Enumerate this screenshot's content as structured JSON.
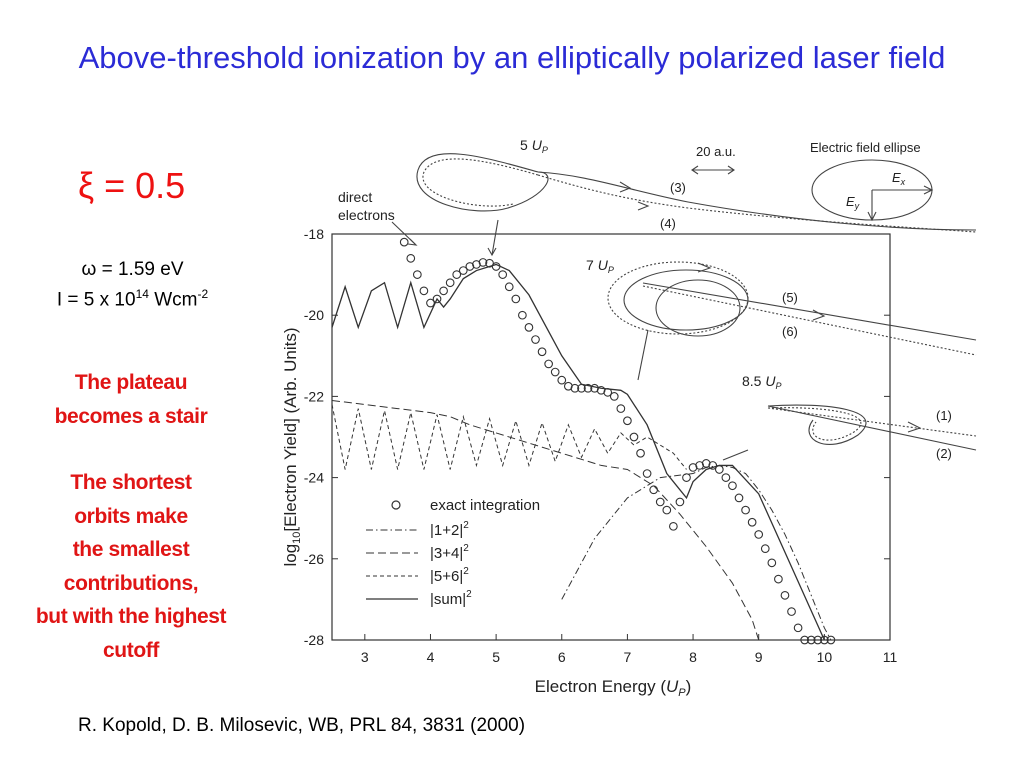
{
  "slide": {
    "title": "Above-threshold ionization by an elliptically polarized laser field",
    "xi": "ξ = 0.5",
    "omega": "ω = 1.59 eV",
    "intensity_base": "I = 5 x 10",
    "intensity_exp": "14",
    "intensity_unit": " Wcm",
    "intensity_unit_exp": "-2",
    "note1_line1": "The plateau",
    "note1_line2": "becomes a stair",
    "note2_line1": "The shortest",
    "note2_line2": "orbits make",
    "note2_line3": "the smallest",
    "note2_line4": "contributions,",
    "note2_line5": "but with the highest",
    "note2_line6": "cutoff",
    "citation": "R. Kopold, D. B. Milosevic, WB, PRL 84, 3831 (2000)"
  },
  "figure": {
    "xlabel_pre": "Electron Energy (",
    "xlabel_unit": "U",
    "xlabel_sub": "P",
    "xlabel_post": ")",
    "ylabel_pre": "log",
    "ylabel_sub": "10",
    "ylabel_post": "[Electron Yield] (Arb. Units)",
    "inset": {
      "scale_label": "20 a.u.",
      "ellipse_label": "Electric field ellipse",
      "ex": "E",
      "ex_sub": "x",
      "ey": "E",
      "ey_sub": "y",
      "direct_line1": "direct",
      "direct_line2": "electrons",
      "orbit_5up": "5",
      "orbit_7up": "7",
      "orbit_85up": "8.5",
      "up_letter": "U",
      "up_sub": "P",
      "tag1": "(1)",
      "tag2": "(2)",
      "tag3": "(3)",
      "tag4": "(4)",
      "tag5": "(5)",
      "tag6": "(6)"
    },
    "legend": [
      {
        "name": "exact integration"
      },
      {
        "name": "|1+2|",
        "sup": "2"
      },
      {
        "name": "|3+4|",
        "sup": "2"
      },
      {
        "name": "|5+6|",
        "sup": "2"
      },
      {
        "name": "|sum|",
        "sup": "2"
      }
    ]
  },
  "chart_data": {
    "type": "line",
    "xlim": [
      2.5,
      11
    ],
    "ylim": [
      -28,
      -18
    ],
    "xticks": [
      3,
      4,
      5,
      6,
      7,
      8,
      9,
      10,
      11
    ],
    "yticks": [
      -18,
      -20,
      -22,
      -24,
      -26,
      -28
    ],
    "series": [
      {
        "name": "exact integration",
        "style": "circles",
        "x": [
          3.6,
          3.7,
          3.8,
          3.9,
          4.0,
          4.1,
          4.2,
          4.3,
          4.4,
          4.5,
          4.6,
          4.7,
          4.8,
          4.9,
          5.0,
          5.1,
          5.2,
          5.3,
          5.4,
          5.5,
          5.6,
          5.7,
          5.8,
          5.9,
          6.0,
          6.1,
          6.2,
          6.3,
          6.4,
          6.5,
          6.6,
          6.7,
          6.8,
          6.9,
          7.0,
          7.1,
          7.2,
          7.3,
          7.4,
          7.5,
          7.6,
          7.7,
          7.8,
          7.9,
          8.0,
          8.1,
          8.2,
          8.3,
          8.4,
          8.5,
          8.6,
          8.7,
          8.8,
          8.9,
          9.0,
          9.1,
          9.2,
          9.3,
          9.4,
          9.5,
          9.6,
          9.7,
          9.8,
          9.9,
          10.0,
          10.1
        ],
        "y": [
          -18.2,
          -18.6,
          -19.0,
          -19.4,
          -19.7,
          -19.6,
          -19.4,
          -19.2,
          -19.0,
          -18.9,
          -18.8,
          -18.75,
          -18.7,
          -18.72,
          -18.8,
          -19.0,
          -19.3,
          -19.6,
          -20.0,
          -20.3,
          -20.6,
          -20.9,
          -21.2,
          -21.4,
          -21.6,
          -21.75,
          -21.8,
          -21.8,
          -21.8,
          -21.8,
          -21.85,
          -21.9,
          -22.0,
          -22.3,
          -22.6,
          -23.0,
          -23.4,
          -23.9,
          -24.3,
          -24.6,
          -24.8,
          -25.2,
          -24.6,
          -24.0,
          -23.75,
          -23.7,
          -23.65,
          -23.7,
          -23.8,
          -24.0,
          -24.2,
          -24.5,
          -24.8,
          -25.1,
          -25.4,
          -25.75,
          -26.1,
          -26.5,
          -26.9,
          -27.3,
          -27.7,
          -28.0,
          -28.0,
          -28.0,
          -28.0,
          -28.0
        ]
      },
      {
        "name": "|1+2|^2",
        "style": "dash-dot",
        "x": [
          6.0,
          6.5,
          7.0,
          7.5,
          8.0,
          8.2,
          8.4,
          8.6,
          8.8,
          9.0,
          9.2,
          9.4,
          9.6,
          9.8,
          10.0,
          10.1
        ],
        "y": [
          -27.0,
          -25.5,
          -24.5,
          -24.0,
          -23.9,
          -23.75,
          -23.7,
          -23.75,
          -23.9,
          -24.3,
          -24.8,
          -25.4,
          -26.1,
          -26.9,
          -27.7,
          -28.0
        ]
      },
      {
        "name": "|3+4|^2",
        "style": "dashed",
        "x": [
          2.5,
          3.0,
          3.5,
          4.0,
          4.3,
          4.6,
          5.0,
          5.4,
          5.8,
          6.2,
          6.6,
          7.0,
          7.4,
          7.8,
          8.2,
          8.6,
          8.9,
          9.0
        ],
        "y": [
          -22.1,
          -22.2,
          -22.3,
          -22.4,
          -22.5,
          -22.7,
          -22.9,
          -23.1,
          -23.3,
          -23.5,
          -23.7,
          -23.8,
          -24.2,
          -24.9,
          -25.7,
          -26.6,
          -27.5,
          -28.0
        ]
      },
      {
        "name": "|5+6|^2",
        "style": "short-dashed",
        "x": [
          2.5,
          2.7,
          2.9,
          3.1,
          3.3,
          3.5,
          3.7,
          3.9,
          4.1,
          4.3,
          4.5,
          4.7,
          4.9,
          5.1,
          5.3,
          5.5,
          5.7,
          5.9,
          6.1,
          6.3,
          6.5,
          6.7,
          6.9,
          7.1,
          7.3,
          7.5,
          7.7,
          7.9
        ],
        "y": [
          -22.2,
          -23.8,
          -22.3,
          -23.8,
          -22.35,
          -23.8,
          -22.4,
          -23.8,
          -22.45,
          -23.8,
          -22.5,
          -23.7,
          -22.55,
          -23.7,
          -22.6,
          -23.7,
          -22.65,
          -23.6,
          -22.7,
          -23.5,
          -22.8,
          -23.4,
          -22.9,
          -23.2,
          -23.0,
          -23.2,
          -23.4,
          -23.8
        ]
      },
      {
        "name": "|sum|^2",
        "style": "solid",
        "x": [
          2.5,
          2.7,
          2.9,
          3.1,
          3.3,
          3.5,
          3.7,
          3.9,
          4.1,
          4.2,
          4.3,
          4.5,
          4.7,
          4.9,
          5.0,
          5.2,
          5.5,
          6.0,
          6.3,
          6.6,
          6.9,
          7.0,
          7.3,
          7.6,
          7.8,
          7.9,
          8.0,
          8.2,
          8.4,
          8.6,
          9.0,
          9.5,
          10.0
        ],
        "y": [
          -20.3,
          -19.3,
          -20.3,
          -19.4,
          -19.2,
          -20.3,
          -19.2,
          -20.3,
          -19.6,
          -19.8,
          -19.6,
          -19.1,
          -18.9,
          -18.8,
          -18.75,
          -18.9,
          -19.5,
          -21.0,
          -21.7,
          -21.8,
          -21.85,
          -21.95,
          -22.7,
          -23.9,
          -24.3,
          -24.5,
          -24.1,
          -23.8,
          -23.7,
          -23.7,
          -24.4,
          -26.2,
          -28.0
        ]
      }
    ]
  }
}
